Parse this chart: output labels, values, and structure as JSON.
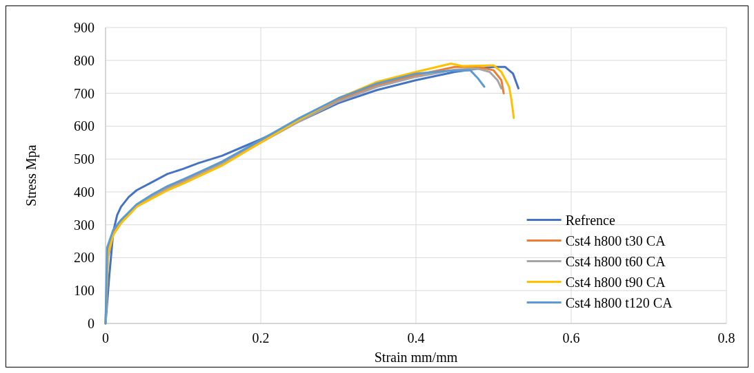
{
  "chart_data": {
    "type": "line",
    "xlabel": "Strain mm/mm",
    "ylabel": "Stress Mpa",
    "xlim": [
      0,
      0.8
    ],
    "xticks": [
      0,
      0.2,
      0.4,
      0.6,
      0.8
    ],
    "ylim": [
      0,
      900
    ],
    "yticks": [
      0,
      100,
      200,
      300,
      400,
      500,
      600,
      700,
      800,
      900
    ],
    "grid": true,
    "legend": "bottom right",
    "series": [
      {
        "name": "Refrence",
        "color": "#4472c4",
        "x": [
          0,
          0.005,
          0.01,
          0.015,
          0.02,
          0.03,
          0.04,
          0.06,
          0.08,
          0.1,
          0.12,
          0.15,
          0.18,
          0.2,
          0.25,
          0.3,
          0.35,
          0.4,
          0.45,
          0.48,
          0.5,
          0.515,
          0.525,
          0.532
        ],
        "values": [
          0,
          150,
          280,
          330,
          355,
          385,
          405,
          430,
          455,
          470,
          488,
          510,
          540,
          560,
          615,
          670,
          710,
          740,
          765,
          775,
          780,
          780,
          760,
          715
        ]
      },
      {
        "name": "Cst4 h800 t30 CA",
        "color": "#ed7d31",
        "x": [
          0,
          0.003,
          0.01,
          0.02,
          0.04,
          0.06,
          0.08,
          0.1,
          0.15,
          0.2,
          0.25,
          0.3,
          0.35,
          0.4,
          0.45,
          0.48,
          0.5,
          0.51,
          0.513
        ],
        "values": [
          0,
          220,
          275,
          310,
          360,
          390,
          415,
          435,
          490,
          555,
          620,
          680,
          725,
          755,
          780,
          780,
          770,
          740,
          700
        ]
      },
      {
        "name": "Cst4 h800 t60 CA",
        "color": "#a5a5a5",
        "x": [
          0,
          0.003,
          0.01,
          0.02,
          0.04,
          0.06,
          0.08,
          0.1,
          0.15,
          0.2,
          0.25,
          0.3,
          0.35,
          0.4,
          0.45,
          0.48,
          0.495,
          0.505,
          0.51
        ],
        "values": [
          0,
          200,
          270,
          305,
          355,
          385,
          410,
          430,
          485,
          550,
          615,
          675,
          720,
          750,
          772,
          775,
          765,
          740,
          715
        ]
      },
      {
        "name": "Cst4 h800 t90 CA",
        "color": "#ffc000",
        "x": [
          0,
          0.003,
          0.01,
          0.02,
          0.04,
          0.06,
          0.08,
          0.1,
          0.15,
          0.2,
          0.25,
          0.3,
          0.35,
          0.4,
          0.445,
          0.46,
          0.5,
          0.51,
          0.52,
          0.523,
          0.526
        ],
        "values": [
          0,
          210,
          270,
          305,
          355,
          380,
          405,
          425,
          480,
          550,
          620,
          685,
          735,
          765,
          790,
          783,
          785,
          765,
          720,
          680,
          625
        ]
      },
      {
        "name": "Cst4 h800 t120 CA",
        "color": "#5b9bd5",
        "x": [
          0,
          0.002,
          0.01,
          0.02,
          0.04,
          0.06,
          0.08,
          0.1,
          0.15,
          0.2,
          0.25,
          0.3,
          0.35,
          0.4,
          0.44,
          0.47,
          0.48,
          0.488
        ],
        "values": [
          0,
          230,
          285,
          315,
          362,
          392,
          418,
          438,
          492,
          558,
          625,
          685,
          730,
          760,
          768,
          770,
          745,
          720
        ]
      }
    ]
  }
}
